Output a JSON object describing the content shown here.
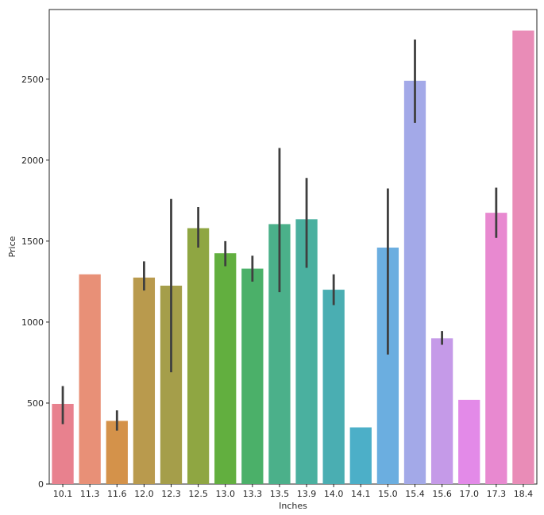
{
  "chart_data": {
    "type": "bar",
    "title": "",
    "xlabel": "Inches",
    "ylabel": "Price",
    "ylim": [
      0,
      2930
    ],
    "yticks": [
      0,
      500,
      1000,
      1500,
      2000,
      2500
    ],
    "categories": [
      "10.1",
      "11.3",
      "11.6",
      "12.0",
      "12.3",
      "12.5",
      "13.0",
      "13.3",
      "13.5",
      "13.9",
      "14.0",
      "14.1",
      "15.0",
      "15.4",
      "15.6",
      "17.0",
      "17.3",
      "18.4"
    ],
    "values": [
      495,
      1295,
      390,
      1275,
      1225,
      1580,
      1425,
      1330,
      1605,
      1635,
      1200,
      350,
      1460,
      2490,
      900,
      520,
      1675,
      2800
    ],
    "error_bars": [
      [
        370,
        605
      ],
      null,
      [
        330,
        455
      ],
      [
        1195,
        1375
      ],
      [
        690,
        1760
      ],
      [
        1460,
        1710
      ],
      [
        1345,
        1500
      ],
      [
        1250,
        1410
      ],
      [
        1185,
        2075
      ],
      [
        1335,
        1890
      ],
      [
        1105,
        1295
      ],
      null,
      [
        800,
        1825
      ],
      [
        2230,
        2745
      ],
      [
        860,
        945
      ],
      null,
      [
        1520,
        1830
      ],
      null
    ],
    "colors": [
      "#e8818e",
      "#e89077",
      "#d4924a",
      "#b99a4d",
      "#a59e4a",
      "#8fa642",
      "#62af3f",
      "#4bb069",
      "#4bb08a",
      "#4ab09f",
      "#4aaeb2",
      "#4cafc8",
      "#6baee0",
      "#a3a9e8",
      "#c59ae8",
      "#e38ae8",
      "#e889d0",
      "#e98cb7"
    ],
    "errorbar_color": "#3f3f3f",
    "grid": false
  }
}
